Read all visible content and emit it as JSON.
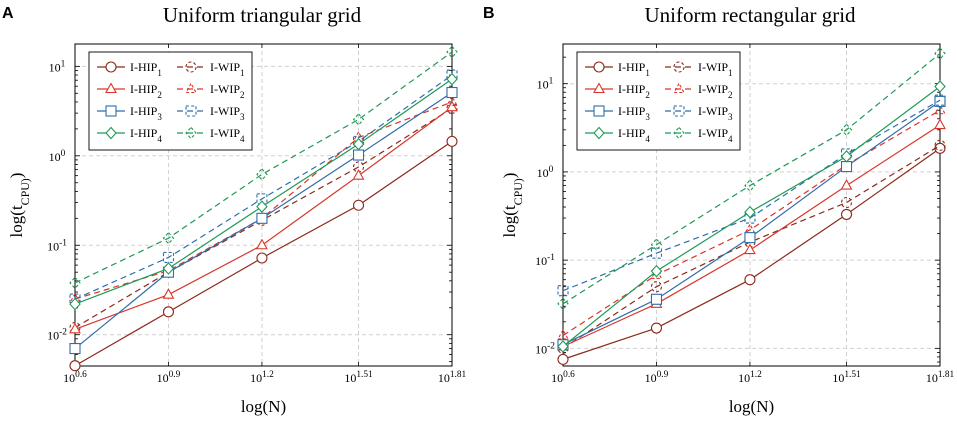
{
  "chart_data": [
    {
      "type": "line",
      "panel": "A",
      "title": "Uniform triangular grid",
      "xlabel": "log(N)",
      "ylabel": "log(t_CPU)",
      "x": [
        0.6,
        0.9,
        1.2,
        1.51,
        1.81
      ],
      "xticklabels": [
        "10^0.6",
        "10^0.9",
        "10^1.2",
        "10^1.51",
        "10^1.81"
      ],
      "ylim_log10": [
        -2.35,
        1.25
      ],
      "yticks_log10": [
        -2,
        -1,
        0,
        1
      ],
      "series": [
        {
          "name": "I-HIP1",
          "values": [
            0.0045,
            0.018,
            0.072,
            0.28,
            1.45
          ]
        },
        {
          "name": "I-WIP1",
          "values": [
            0.012,
            0.05,
            0.19,
            0.75,
            3.4
          ]
        },
        {
          "name": "I-HIP2",
          "values": [
            0.0115,
            0.028,
            0.1,
            0.6,
            3.5
          ]
        },
        {
          "name": "I-WIP2",
          "values": [
            0.025,
            0.052,
            0.2,
            1.6,
            4.0
          ]
        },
        {
          "name": "I-HIP3",
          "values": [
            0.007,
            0.05,
            0.2,
            1.02,
            5.1
          ]
        },
        {
          "name": "I-WIP3",
          "values": [
            0.025,
            0.073,
            0.33,
            1.45,
            8.0
          ]
        },
        {
          "name": "I-HIP4",
          "values": [
            0.022,
            0.055,
            0.27,
            1.35,
            7.2
          ]
        },
        {
          "name": "I-WIP4",
          "values": [
            0.038,
            0.12,
            0.62,
            2.55,
            14.5
          ]
        }
      ]
    },
    {
      "type": "line",
      "panel": "B",
      "title": "Uniform rectangular grid",
      "xlabel": "log(N)",
      "ylabel": "log(t_CPU)",
      "x": [
        0.6,
        0.9,
        1.2,
        1.51,
        1.81
      ],
      "xticklabels": [
        "10^0.6",
        "10^0.9",
        "10^1.2",
        "10^1.51",
        "10^1.81"
      ],
      "ylim_log10": [
        -2.2,
        1.45
      ],
      "yticks_log10": [
        -2,
        -1,
        0,
        1
      ],
      "series": [
        {
          "name": "I-HIP1",
          "values": [
            0.0075,
            0.017,
            0.06,
            0.33,
            1.85
          ]
        },
        {
          "name": "I-WIP1",
          "values": [
            0.01,
            0.05,
            0.16,
            0.45,
            2.0
          ]
        },
        {
          "name": "I-HIP2",
          "values": [
            0.0105,
            0.032,
            0.13,
            0.7,
            3.4
          ]
        },
        {
          "name": "I-WIP2",
          "values": [
            0.014,
            0.068,
            0.22,
            1.2,
            5.0
          ]
        },
        {
          "name": "I-HIP3",
          "values": [
            0.011,
            0.036,
            0.18,
            1.15,
            6.3
          ]
        },
        {
          "name": "I-WIP3",
          "values": [
            0.045,
            0.12,
            0.3,
            1.6,
            6.5
          ]
        },
        {
          "name": "I-HIP4",
          "values": [
            0.0105,
            0.075,
            0.35,
            1.5,
            9.3
          ]
        },
        {
          "name": "I-WIP4",
          "values": [
            0.032,
            0.15,
            0.7,
            3.0,
            22.0
          ]
        }
      ]
    }
  ],
  "legend": {
    "entries": [
      {
        "name": "I-HIP1",
        "base": "I-HIP",
        "sub": "1"
      },
      {
        "name": "I-WIP1",
        "base": "I-WIP",
        "sub": "1"
      },
      {
        "name": "I-HIP2",
        "base": "I-HIP",
        "sub": "2"
      },
      {
        "name": "I-WIP2",
        "base": "I-WIP",
        "sub": "2"
      },
      {
        "name": "I-HIP3",
        "base": "I-HIP",
        "sub": "3"
      },
      {
        "name": "I-WIP3",
        "base": "I-WIP",
        "sub": "3"
      },
      {
        "name": "I-HIP4",
        "base": "I-HIP",
        "sub": "4"
      },
      {
        "name": "I-WIP4",
        "base": "I-WIP",
        "sub": "4"
      }
    ],
    "placement": "top-left"
  },
  "styles": {
    "I-HIP1": {
      "color": "#8b2a1a",
      "marker": "circle",
      "dash": false
    },
    "I-WIP1": {
      "color": "#8b2a1a",
      "marker": "circle",
      "dash": true
    },
    "I-HIP2": {
      "color": "#d9362b",
      "marker": "triangle",
      "dash": false
    },
    "I-WIP2": {
      "color": "#d9362b",
      "marker": "triangle",
      "dash": true
    },
    "I-HIP3": {
      "color": "#2f6eab",
      "marker": "square",
      "dash": false
    },
    "I-WIP3": {
      "color": "#2f6eab",
      "marker": "square",
      "dash": true
    },
    "I-HIP4": {
      "color": "#1f9a55",
      "marker": "diamond",
      "dash": false
    },
    "I-WIP4": {
      "color": "#1f9a55",
      "marker": "diamond",
      "dash": true
    }
  }
}
